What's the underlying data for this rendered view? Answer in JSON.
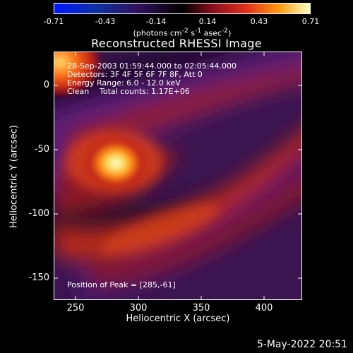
{
  "colorbar": {
    "ticks": [
      "-0.71",
      "-0.43",
      "-0.14",
      "0.14",
      "0.43",
      "0.71"
    ],
    "units_html": "(photons cm<sup>-2</sup> s<sup>-1</sup> asec<sup>-2</sup>)"
  },
  "title": "Reconstructed RHESSI Image",
  "info": {
    "time": "28-Sep-2003 01:59:44.000 to 02:05:44.000",
    "detectors": "Detectors: 3F 4F 5F 6F 7F 8F, Att 0",
    "energy": "Energy Range: 6.0 - 12.0 keV",
    "method": "Clean",
    "counts": "Total counts: 1.17E+06",
    "peak": "Position of Peak = [285,-61]"
  },
  "axes": {
    "xlabel": "Heliocentric X (arcsec)",
    "ylabel": "Heliocentric Y (arcsec)",
    "xticks": [
      "250",
      "300",
      "350",
      "400"
    ],
    "yticks": [
      "0",
      "-50",
      "-100",
      "-150"
    ]
  },
  "timestamp": "5-May-2022 20:51",
  "colors": {
    "background": "#000000",
    "axes": "#ffffff"
  }
}
